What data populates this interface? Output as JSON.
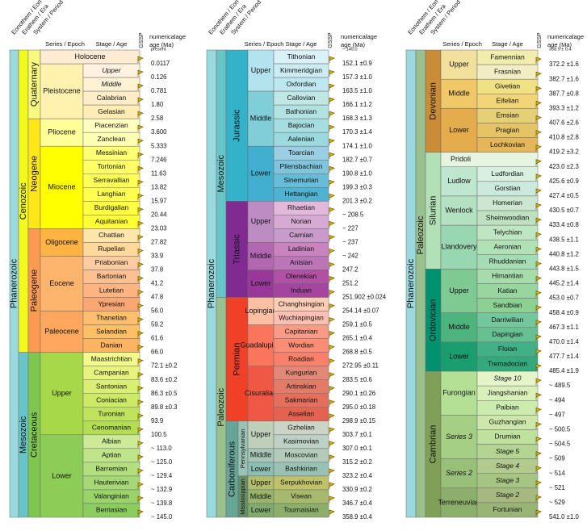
{
  "chart_data": {
    "type": "table",
    "headers": {
      "eonothem": "Eonothem / Eon",
      "erathem": "Erathem / Era",
      "system": "System / Period",
      "series": "Series / Epoch",
      "stage": "Stage / Age",
      "gssp": "GSSP",
      "age": "numerical age (Ma)"
    },
    "columns": [
      {
        "eon": "Phanerozoic",
        "eras": [
          {
            "name": "Cenozoic",
            "color": "#f2f91d",
            "from": 0,
            "to": 23
          },
          {
            "name": "Mesozoic",
            "color": "#67c5ca",
            "from": 23,
            "to": 37
          }
        ],
        "periods": [
          {
            "name": "Quaternary",
            "color": "#f9f97f",
            "from": 0,
            "to": 5
          },
          {
            "name": "Neogene",
            "color": "#ffe619",
            "from": 5,
            "to": 13
          },
          {
            "name": "Paleogene",
            "color": "#fd9a52",
            "from": 13,
            "to": 23
          },
          {
            "name": "Cretaceous",
            "color": "#7fc64e",
            "from": 23,
            "to": 37
          }
        ],
        "epochs": [
          {
            "name": "Holocene",
            "color": "#feebd2",
            "from": 0,
            "to": 1
          },
          {
            "name": "Pleistocene",
            "color": "#fff2ae",
            "from": 1,
            "to": 5
          },
          {
            "name": "Pliocene",
            "color": "#ffff99",
            "from": 5,
            "to": 7
          },
          {
            "name": "Miocene",
            "color": "#ffff00",
            "from": 7,
            "to": 13
          },
          {
            "name": "Oligocene",
            "color": "#feb342",
            "from": 13,
            "to": 15
          },
          {
            "name": "Eocene",
            "color": "#fdb46c",
            "from": 15,
            "to": 19
          },
          {
            "name": "Paleocene",
            "color": "#fda75f",
            "from": 19,
            "to": 23
          },
          {
            "name": "Upper",
            "color": "#a6d84a",
            "from": 23,
            "to": 30
          },
          {
            "name": "Lower",
            "color": "#8ccd57",
            "from": 30,
            "to": 37
          }
        ],
        "stages": [
          {
            "name": "Holocene",
            "color": "#feebd2",
            "age": "0.0117",
            "italic": false,
            "row": 0,
            "merged": true
          },
          {
            "name": "Upper",
            "color": "#fff2e1",
            "age": "0.126",
            "italic": true
          },
          {
            "name": "Middle",
            "color": "#fff2d4",
            "age": "0.781",
            "italic": true
          },
          {
            "name": "Calabrian",
            "color": "#ffedc7",
            "age": "1.80"
          },
          {
            "name": "Gelasian",
            "color": "#ffedb3",
            "age": "2.58"
          },
          {
            "name": "Piacenzian",
            "color": "#ffffbf",
            "age": "3.600"
          },
          {
            "name": "Zanclean",
            "color": "#ffffb3",
            "age": "5.333"
          },
          {
            "name": "Messinian",
            "color": "#ffff73",
            "age": "7.246"
          },
          {
            "name": "Tortonian",
            "color": "#ffff66",
            "age": "11.63"
          },
          {
            "name": "Serravallian",
            "color": "#ffff59",
            "age": "13.82"
          },
          {
            "name": "Langhian",
            "color": "#ffff4d",
            "age": "15.97"
          },
          {
            "name": "Burdigalian",
            "color": "#ffff41",
            "age": "20.44"
          },
          {
            "name": "Aquitanian",
            "color": "#ffff33",
            "age": "23.03"
          },
          {
            "name": "Chattian",
            "color": "#fee6aa",
            "age": "27.82"
          },
          {
            "name": "Rupelian",
            "color": "#fed99a",
            "age": "33.9"
          },
          {
            "name": "Priabonian",
            "color": "#fdcda1",
            "age": "37.8"
          },
          {
            "name": "Bartonian",
            "color": "#fdc091",
            "age": "41.2"
          },
          {
            "name": "Lutetian",
            "color": "#fcb482",
            "age": "47.8"
          },
          {
            "name": "Ypresian",
            "color": "#fca773",
            "age": "56.0"
          },
          {
            "name": "Thanetian",
            "color": "#fdbf6f",
            "age": "59.2"
          },
          {
            "name": "Selandian",
            "color": "#febf65",
            "age": "61.6"
          },
          {
            "name": "Danian",
            "color": "#fdb462",
            "age": "66.0"
          },
          {
            "name": "Maastrichtian",
            "color": "#f2fa8c",
            "age": "72.1 ±0.2"
          },
          {
            "name": "Campanian",
            "color": "#e6f47f",
            "age": "83.6 ±0.2"
          },
          {
            "name": "Santonian",
            "color": "#d9ef74",
            "age": "86.3 ±0.5"
          },
          {
            "name": "Coniacian",
            "color": "#cce968",
            "age": "89.8 ±0.3"
          },
          {
            "name": "Turonian",
            "color": "#bfe35d",
            "age": "93.9"
          },
          {
            "name": "Cenomanian",
            "color": "#b3de53",
            "age": "100.5"
          },
          {
            "name": "Albian",
            "color": "#ccea97",
            "age": "~ 113.0"
          },
          {
            "name": "Aptian",
            "color": "#bfe48a",
            "age": "~ 125.0"
          },
          {
            "name": "Barremian",
            "color": "#b3df7f",
            "age": "~ 129.4"
          },
          {
            "name": "Hauterivian",
            "color": "#a6d975",
            "age": "~ 132.9"
          },
          {
            "name": "Valanginian",
            "color": "#99d36a",
            "age": "~ 139.8"
          },
          {
            "name": "Berriasian",
            "color": "#8ccd60",
            "age": "~ 145.0"
          }
        ],
        "top_age": "present"
      },
      {
        "eon": "Phanerozoic",
        "eras": [
          {
            "name": "Mesozoic",
            "color": "#67c5ca"
          },
          {
            "name": "Paleozoic",
            "color": "#99c08d"
          }
        ],
        "periods": [
          {
            "name": "Jurassic",
            "color": "#34b2c9"
          },
          {
            "name": "Triassic",
            "color": "#812b92"
          },
          {
            "name": "Permian",
            "color": "#f04028"
          },
          {
            "name": "Carboniferous",
            "color": "#67a599"
          }
        ],
        "subperiods": [
          {
            "name": "Pennsylvanian",
            "color": "#99c2b5"
          },
          {
            "name": "Mississippian",
            "color": "#678f66"
          }
        ],
        "epochs": [
          {
            "name": "Upper",
            "color": "#b3e3ee"
          },
          {
            "name": "Middle",
            "color": "#80cfd8"
          },
          {
            "name": "Lower",
            "color": "#42aed0"
          },
          {
            "name": "Upper",
            "color": "#bd8cc3"
          },
          {
            "name": "Middle",
            "color": "#b168b1"
          },
          {
            "name": "Lower",
            "color": "#983999"
          },
          {
            "name": "Lopingian",
            "color": "#fbbfa3"
          },
          {
            "name": "Guadalupian",
            "color": "#fb745c"
          },
          {
            "name": "Cisuralian",
            "color": "#ef5845"
          },
          {
            "name": "Upper",
            "color": "#bfd0ba"
          },
          {
            "name": "Middle",
            "color": "#a6c7b7"
          },
          {
            "name": "Lower",
            "color": "#8cbeb4"
          },
          {
            "name": "Upper",
            "color": "#b3be6c"
          },
          {
            "name": "Middle",
            "color": "#99b46c"
          },
          {
            "name": "Lower",
            "color": "#80ab6c"
          }
        ],
        "stages": [
          {
            "name": "Tithonian",
            "color": "#d9f1f7",
            "age": "152.1 ±0.9"
          },
          {
            "name": "Kimmeridgian",
            "color": "#ccecf4",
            "age": "157.3 ±1.0"
          },
          {
            "name": "Oxfordian",
            "color": "#bfe7f1",
            "age": "163.5 ±1.0"
          },
          {
            "name": "Callovian",
            "color": "#bfe7e5",
            "age": "166.1 ±1.2"
          },
          {
            "name": "Bathonian",
            "color": "#b3e2e3",
            "age": "168.3 ±1.3"
          },
          {
            "name": "Bajocian",
            "color": "#a6dde0",
            "age": "170.3 ±1.4"
          },
          {
            "name": "Aalenian",
            "color": "#9ad9dd",
            "age": "174.1 ±1.0"
          },
          {
            "name": "Toarcian",
            "color": "#99cee3",
            "age": "182.7 ±0.7"
          },
          {
            "name": "Pliensbachian",
            "color": "#80c5dd",
            "age": "190.8 ±1.0"
          },
          {
            "name": "Sinemurian",
            "color": "#67bcd8",
            "age": "199.3 ±0.3"
          },
          {
            "name": "Hettangian",
            "color": "#4eb3d3",
            "age": "201.3 ±0.2"
          },
          {
            "name": "Rhaetian",
            "color": "#e3b9db",
            "age": "~ 208.5"
          },
          {
            "name": "Norian",
            "color": "#d6aad3",
            "age": "~ 227"
          },
          {
            "name": "Carnian",
            "color": "#c99bcb",
            "age": "~ 237"
          },
          {
            "name": "Ladinian",
            "color": "#c983bf",
            "age": "~ 242"
          },
          {
            "name": "Anisian",
            "color": "#bc75b7",
            "age": "247.2"
          },
          {
            "name": "Olenekian",
            "color": "#b051a5",
            "age": "251.2"
          },
          {
            "name": "Induan",
            "color": "#a4469f",
            "age": "251.902 ±0.024"
          },
          {
            "name": "Changhsingian",
            "color": "#fccdb4",
            "age": "254.14 ±0.07"
          },
          {
            "name": "Wuchiapingian",
            "color": "#fcc0b2",
            "age": "259.1 ±0.5"
          },
          {
            "name": "Capitanian",
            "color": "#fb9a85",
            "age": "265.1 ±0.4"
          },
          {
            "name": "Wordian",
            "color": "#fb8d76",
            "age": "268.8 ±0.5"
          },
          {
            "name": "Roadian",
            "color": "#fb8069",
            "age": "272.95 ±0.11"
          },
          {
            "name": "Kungurian",
            "color": "#e38776",
            "age": "283.5 ±0.6"
          },
          {
            "name": "Artinskian",
            "color": "#e37b68",
            "age": "290.1 ±0.26"
          },
          {
            "name": "Sakmarian",
            "color": "#e36f5c",
            "age": "295.0 ±0.18"
          },
          {
            "name": "Asselian",
            "color": "#e36350",
            "age": "298.9 ±0.15"
          },
          {
            "name": "Gzhelian",
            "color": "#ccd4c7",
            "age": "303.7 ±0.1"
          },
          {
            "name": "Kasimovian",
            "color": "#bfd0c5",
            "age": "307.0 ±0.1"
          },
          {
            "name": "Moscovian",
            "color": "#b3cbb9",
            "age": "315.2 ±0.2"
          },
          {
            "name": "Bashkirian",
            "color": "#99c2b5",
            "age": "323.2 ±0.4"
          },
          {
            "name": "Serpukhovian",
            "color": "#bfc26b",
            "age": "330.9 ±0.2"
          },
          {
            "name": "Visean",
            "color": "#a6b96c",
            "age": "346.7 ±0.4"
          },
          {
            "name": "Tournaisian",
            "color": "#8cb06c",
            "age": "358.9 ±0.4"
          }
        ],
        "top_age": "~ 145.0"
      },
      {
        "eon": "Phanerozoic",
        "eras": [
          {
            "name": "Paleozoic",
            "color": "#99c08d"
          }
        ],
        "periods": [
          {
            "name": "Devonian",
            "color": "#cb8c37"
          },
          {
            "name": "Silurian",
            "color": "#b3e1b6"
          },
          {
            "name": "Ordovician",
            "color": "#009270"
          },
          {
            "name": "Cambrian",
            "color": "#7fa056"
          }
        ],
        "epochs": [
          {
            "name": "Upper",
            "color": "#f1e19d"
          },
          {
            "name": "Middle",
            "color": "#f1c868"
          },
          {
            "name": "Lower",
            "color": "#e5ac4d"
          },
          {
            "name": "Pridoli",
            "color": "#e6f5e1"
          },
          {
            "name": "Ludlow",
            "color": "#bfe6cf"
          },
          {
            "name": "Wenlock",
            "color": "#b3e1c2"
          },
          {
            "name": "Llandovery",
            "color": "#99d7b3"
          },
          {
            "name": "Upper",
            "color": "#7fca93"
          },
          {
            "name": "Middle",
            "color": "#4db47e"
          },
          {
            "name": "Lower",
            "color": "#1a9d6f"
          },
          {
            "name": "Furongian",
            "color": "#b3e095"
          },
          {
            "name": "Series 3",
            "color": "#a6cf86",
            "italic": true
          },
          {
            "name": "Series 2",
            "color": "#99c078",
            "italic": true
          },
          {
            "name": "Terreneuvian",
            "color": "#8cb06c"
          }
        ],
        "stages": [
          {
            "name": "Famennian",
            "color": "#f2edad",
            "age": "372.2 ±1.6"
          },
          {
            "name": "Frasnian",
            "color": "#f2edc5",
            "age": "382.7 ±1.6"
          },
          {
            "name": "Givetian",
            "color": "#f1e185",
            "age": "387.7 ±0.8"
          },
          {
            "name": "Eifelian",
            "color": "#f1d576",
            "age": "393.3 ±1.2"
          },
          {
            "name": "Emsian",
            "color": "#e5d075",
            "age": "407.6 ±2.6"
          },
          {
            "name": "Pragian",
            "color": "#e5c468",
            "age": "410.8 ±2.8"
          },
          {
            "name": "Lochkovian",
            "color": "#e5b75a",
            "age": "419.2 ±3.2"
          },
          {
            "name": "Pridoli",
            "color": "#e6f5e1",
            "age": "423.0 ±2.3"
          },
          {
            "name": "Ludfordian",
            "color": "#d9f0df",
            "age": "425.6 ±0.9"
          },
          {
            "name": "Gorstian",
            "color": "#cce9dd",
            "age": "427.4 ±0.5"
          },
          {
            "name": "Homerian",
            "color": "#cce6cf",
            "age": "430.5 ±0.7"
          },
          {
            "name": "Sheinwoodian",
            "color": "#bfe1c2",
            "age": "433.4 ±0.8"
          },
          {
            "name": "Telychian",
            "color": "#bfe6c3",
            "age": "438.5 ±1.1"
          },
          {
            "name": "Aeronian",
            "color": "#b3e1b6",
            "age": "440.8 ±1.2"
          },
          {
            "name": "Rhuddanian",
            "color": "#a6dcb5",
            "age": "443.8 ±1.5"
          },
          {
            "name": "Hirnantian",
            "color": "#a6dbab",
            "age": "445.2 ±1.4"
          },
          {
            "name": "Katian",
            "color": "#99d69f",
            "age": "453.0 ±0.7"
          },
          {
            "name": "Sandbian",
            "color": "#8cd094",
            "age": "458.4 ±0.9"
          },
          {
            "name": "Darriwilian",
            "color": "#74c69c",
            "age": "467.3 ±1.1"
          },
          {
            "name": "Dapingian",
            "color": "#66c092",
            "age": "470.0 ±1.4"
          },
          {
            "name": "Floian",
            "color": "#41b087",
            "age": "477.7 ±1.4"
          },
          {
            "name": "Tremadocian",
            "color": "#33a97e",
            "age": "485.4 ±1.9"
          },
          {
            "name": "Stage 10",
            "color": "#e6f5c9",
            "age": "~ 489.5",
            "italic": true
          },
          {
            "name": "Jiangshanian",
            "color": "#d9f0bb",
            "age": "~ 494"
          },
          {
            "name": "Paibian",
            "color": "#ccebae",
            "age": "~ 497"
          },
          {
            "name": "Guzhangian",
            "color": "#cce6ab",
            "age": "~ 500.5"
          },
          {
            "name": "Drumian",
            "color": "#bfe19e",
            "age": "~ 504.5"
          },
          {
            "name": "Stage 5",
            "color": "#b3d492",
            "age": "~ 509",
            "italic": true
          },
          {
            "name": "Stage 4",
            "color": "#b3ca8e",
            "age": "~ 514",
            "italic": true
          },
          {
            "name": "Stage 3",
            "color": "#a6c583",
            "age": "~ 521",
            "italic": true
          },
          {
            "name": "Stage 2",
            "color": "#a6ba80",
            "age": "~ 529",
            "italic": true
          },
          {
            "name": "Fortunian",
            "color": "#99b575",
            "age": "541.0 ±1.0"
          }
        ],
        "top_age": "358.9 ± 0.4"
      }
    ]
  }
}
